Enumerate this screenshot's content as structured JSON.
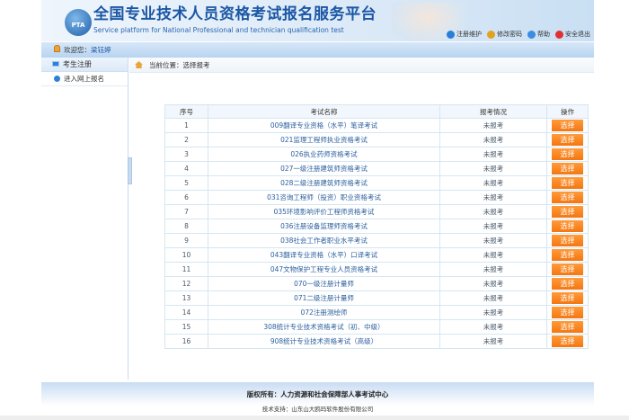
{
  "header": {
    "logo_text": "PTA",
    "title": "全国专业技术人员资格考试报名服务平台",
    "subtitle": "Service platform for National Professional and technician qualification test",
    "links": [
      {
        "label": "注册维护",
        "icon": "globe-icon",
        "color": "#2a7fd4"
      },
      {
        "label": "修改密码",
        "icon": "lock-icon",
        "color": "#e2a21d"
      },
      {
        "label": "帮助",
        "icon": "help-icon",
        "color": "#3a8de0"
      },
      {
        "label": "安全退出",
        "icon": "power-icon",
        "color": "#e03030"
      }
    ]
  },
  "userbar": {
    "welcome": "欢迎您：",
    "username": "梁钰婷"
  },
  "sidebar": {
    "header": "考生注册",
    "items": [
      {
        "label": "进入网上报名"
      }
    ]
  },
  "breadcrumb": {
    "text": "当前位置：选择报考"
  },
  "table": {
    "headers": [
      "序号",
      "考试名称",
      "报考情况",
      "操作"
    ],
    "button_label": "选择",
    "rows": [
      {
        "no": "1",
        "name": "009翻译专业资格（水平）笔译考试",
        "status": "未报考"
      },
      {
        "no": "2",
        "name": "021监理工程师执业资格考试",
        "status": "未报考"
      },
      {
        "no": "3",
        "name": "026执业药师资格考试",
        "status": "未报考"
      },
      {
        "no": "4",
        "name": "027一级注册建筑师资格考试",
        "status": "未报考"
      },
      {
        "no": "5",
        "name": "028二级注册建筑师资格考试",
        "status": "未报考"
      },
      {
        "no": "6",
        "name": "031咨询工程师（投资）职业资格考试",
        "status": "未报考"
      },
      {
        "no": "7",
        "name": "035环境影响评价工程师资格考试",
        "status": "未报考"
      },
      {
        "no": "8",
        "name": "036注册设备监理师资格考试",
        "status": "未报考"
      },
      {
        "no": "9",
        "name": "038社会工作者职业水平考试",
        "status": "未报考"
      },
      {
        "no": "10",
        "name": "043翻译专业资格（水平）口译考试",
        "status": "未报考"
      },
      {
        "no": "11",
        "name": "047文物保护工程专业人员资格考试",
        "status": "未报考"
      },
      {
        "no": "12",
        "name": "070一级注册计量师",
        "status": "未报考"
      },
      {
        "no": "13",
        "name": "071二级注册计量师",
        "status": "未报考"
      },
      {
        "no": "14",
        "name": "072注册测绘师",
        "status": "未报考"
      },
      {
        "no": "15",
        "name": "308统计专业技术资格考试（初、中级）",
        "status": "未报考"
      },
      {
        "no": "16",
        "name": "908统计专业技术资格考试（高级）",
        "status": "未报考"
      }
    ]
  },
  "footer": {
    "copyright": "版权所有：人力资源和社会保障部人事考试中心",
    "support": "技术支持：山东山大鸥玛软件股份有限公司"
  }
}
